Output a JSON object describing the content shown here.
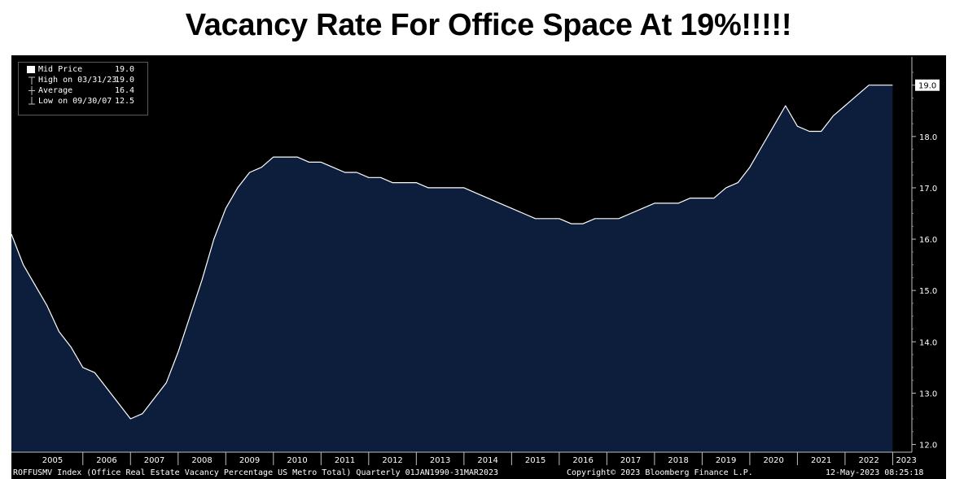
{
  "title": "Vacancy Rate For Office Space At 19%!!!!!",
  "legend": [
    {
      "label": "Mid Price",
      "value": "19.0",
      "icon": "filled-square-icon"
    },
    {
      "label": "High on 03/31/23",
      "value": "19.0",
      "icon": "high-marker-icon"
    },
    {
      "label": "Average",
      "value": "16.4",
      "icon": "average-marker-icon"
    },
    {
      "label": "Low on 09/30/07",
      "value": "12.5",
      "icon": "low-marker-icon"
    }
  ],
  "last_value_label": "19.0",
  "footer": {
    "left": "ROFFUSMV Index (Office Real Estate Vacancy Percentage US Metro Total)  Quarterly 01JAN1990-31MAR2023",
    "center": "Copyright© 2023 Bloomberg Finance L.P.",
    "right": "12-May-2023 08:25:18"
  },
  "colors": {
    "background": "#000000",
    "area_fill": "#0c1e3b",
    "line": "#ffffff",
    "axis_text": "#ffffff"
  },
  "chart_data": {
    "type": "area",
    "title": "Vacancy Rate For Office Space At 19%!!!!!",
    "xlabel": "",
    "ylabel": "",
    "ylim": [
      11.85,
      19.55
    ],
    "yticks": [
      12.0,
      13.0,
      14.0,
      15.0,
      16.0,
      17.0,
      18.0,
      19.0
    ],
    "ytick_labels": [
      "12.0",
      "13.0",
      "14.0",
      "15.0",
      "16.0",
      "17.0",
      "18.0",
      "19.0"
    ],
    "x_labels": [
      "2005",
      "2006",
      "2007",
      "2008",
      "2009",
      "2010",
      "2011",
      "2012",
      "2013",
      "2014",
      "2015",
      "2016",
      "2017",
      "2018",
      "2019",
      "2020",
      "2021",
      "2022",
      "2023"
    ],
    "x_label_years": [
      2005,
      2006,
      2007,
      2008,
      2009,
      2010,
      2011,
      2012,
      2013,
      2014,
      2015,
      2016,
      2017,
      2018,
      2019,
      2020,
      2021,
      2022,
      2023
    ],
    "xlim": [
      2004.5,
      2023.3
    ],
    "grid": false,
    "legend_position": "top-left",
    "series": [
      {
        "name": "Mid Price",
        "x": [
          2004.5,
          2004.75,
          2005.0,
          2005.25,
          2005.5,
          2005.75,
          2006.0,
          2006.25,
          2006.5,
          2006.75,
          2007.0,
          2007.25,
          2007.5,
          2007.75,
          2008.0,
          2008.25,
          2008.5,
          2008.75,
          2009.0,
          2009.25,
          2009.5,
          2009.75,
          2010.0,
          2010.25,
          2010.5,
          2010.75,
          2011.0,
          2011.25,
          2011.5,
          2011.75,
          2012.0,
          2012.25,
          2012.5,
          2012.75,
          2013.0,
          2013.25,
          2013.5,
          2013.75,
          2014.0,
          2014.25,
          2014.5,
          2014.75,
          2015.0,
          2015.25,
          2015.5,
          2015.75,
          2016.0,
          2016.25,
          2016.5,
          2016.75,
          2017.0,
          2017.25,
          2017.5,
          2017.75,
          2018.0,
          2018.25,
          2018.5,
          2018.75,
          2019.0,
          2019.25,
          2019.5,
          2019.75,
          2020.0,
          2020.25,
          2020.5,
          2020.75,
          2021.0,
          2021.25,
          2021.5,
          2021.75,
          2022.0,
          2022.25,
          2022.5,
          2022.75,
          2023.0
        ],
        "values": [
          16.1,
          15.5,
          15.1,
          14.7,
          14.2,
          13.9,
          13.5,
          13.4,
          13.1,
          12.8,
          12.5,
          12.6,
          12.9,
          13.2,
          13.8,
          14.5,
          15.2,
          16.0,
          16.6,
          17.0,
          17.3,
          17.4,
          17.6,
          17.6,
          17.6,
          17.5,
          17.5,
          17.4,
          17.3,
          17.3,
          17.2,
          17.2,
          17.1,
          17.1,
          17.1,
          17.0,
          17.0,
          17.0,
          17.0,
          16.9,
          16.8,
          16.7,
          16.6,
          16.5,
          16.4,
          16.4,
          16.4,
          16.3,
          16.3,
          16.4,
          16.4,
          16.4,
          16.5,
          16.6,
          16.7,
          16.7,
          16.7,
          16.8,
          16.8,
          16.8,
          17.0,
          17.1,
          17.4,
          17.8,
          18.2,
          18.6,
          18.2,
          18.1,
          18.1,
          18.4,
          18.6,
          18.8,
          19.0,
          19.0,
          19.0
        ]
      }
    ]
  }
}
